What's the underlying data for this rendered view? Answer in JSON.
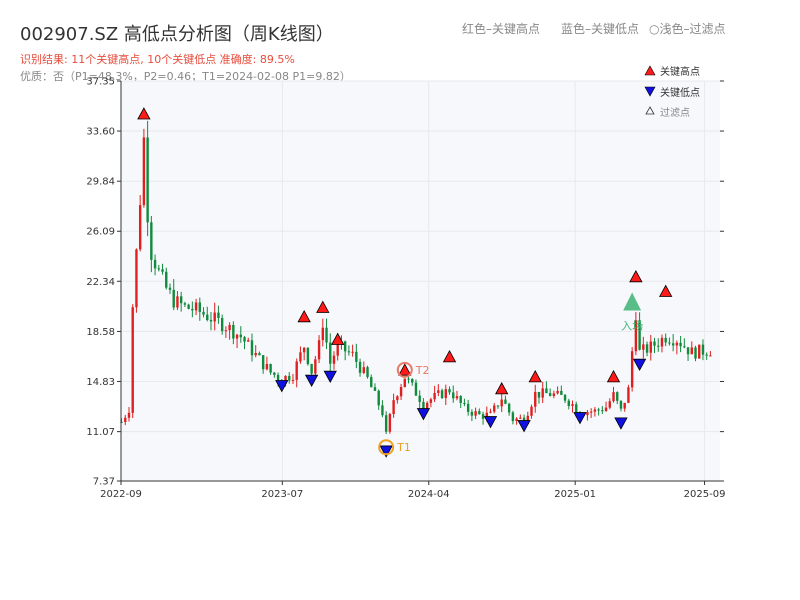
{
  "header": {
    "title": "002907.SZ 高低点分析图（周K线图）",
    "hint_red": "红色–关键高点",
    "hint_blue": "蓝色–关键低点",
    "hint_light": "○浅色–过滤点",
    "result_line": "识别结果: 11个关键高点, 10个关键低点  准确度: 89.5%",
    "quality_line": "优质：否（P1=48.3%，P2=0.46；T1=2024-02-08 P1=9.82）"
  },
  "legend": {
    "high": "关键高点",
    "low": "关键低点",
    "filtered": "过滤点"
  },
  "colors": {
    "up": "#e02020",
    "down": "#108a3c",
    "high_marker": "#ff1a1a",
    "low_marker": "#1010e0",
    "t1": "#f0a020",
    "t2": "#e87a6a",
    "entry": "#3cb371",
    "grid": "#e6e9ee",
    "plot_bg": "#f6f8fb"
  },
  "chart_data": {
    "type": "candlestick",
    "title": "002907.SZ 高低点分析图（周K线图）",
    "y_ticks": [
      "7.37",
      "11.07",
      "14.83",
      "18.58",
      "22.34",
      "26.09",
      "29.84",
      "33.60",
      "37.35"
    ],
    "ylim": [
      7.37,
      37.35
    ],
    "x_ticks": [
      "2022-09",
      "2023-07",
      "2024-04",
      "2025-01",
      "2025-09"
    ],
    "xlim": [
      "2022-09-01",
      "2025-09-30"
    ],
    "grid": true,
    "legend_position": "top-right",
    "series": [
      {
        "name": "关键高点",
        "points": [
          {
            "date": "2022-10-14",
            "value": 34.8
          },
          {
            "date": "2023-08-11",
            "value": 19.6
          },
          {
            "date": "2023-09-15",
            "value": 20.3
          },
          {
            "date": "2023-10-13",
            "value": 17.9
          },
          {
            "date": "2024-02-16",
            "value": 15.6
          },
          {
            "date": "2024-05-10",
            "value": 16.6
          },
          {
            "date": "2024-08-16",
            "value": 14.2
          },
          {
            "date": "2024-10-18",
            "value": 15.1
          },
          {
            "date": "2025-03-14",
            "value": 15.1
          },
          {
            "date": "2025-04-25",
            "value": 22.6
          },
          {
            "date": "2025-06-20",
            "value": 21.5
          }
        ]
      },
      {
        "name": "关键低点",
        "points": [
          {
            "date": "2023-06-30",
            "value": 14.6
          },
          {
            "date": "2023-08-25",
            "value": 15.0
          },
          {
            "date": "2023-09-29",
            "value": 15.3
          },
          {
            "date": "2024-01-12",
            "value": 9.7
          },
          {
            "date": "2024-03-22",
            "value": 12.5
          },
          {
            "date": "2024-07-26",
            "value": 11.9
          },
          {
            "date": "2024-09-27",
            "value": 11.6
          },
          {
            "date": "2025-01-10",
            "value": 12.2
          },
          {
            "date": "2025-03-28",
            "value": 11.8
          },
          {
            "date": "2025-05-02",
            "value": 16.2
          }
        ]
      }
    ],
    "labels": {
      "t1": "T1",
      "t2": "T2",
      "entry": "入场"
    },
    "t1_point": {
      "date": "2024-01-12",
      "value": 9.9
    },
    "t2_point": {
      "date": "2024-02-16",
      "value": 15.7
    },
    "entry_point": {
      "date": "2025-04-18",
      "value": 20.6
    },
    "candles_close_path": [
      [
        "2022-09-02",
        11.8
      ],
      [
        "2022-09-16",
        12.8
      ],
      [
        "2022-09-23",
        20.5
      ],
      [
        "2022-09-30",
        24.5
      ],
      [
        "2022-10-07",
        28.5
      ],
      [
        "2022-10-14",
        33.0
      ],
      [
        "2022-10-21",
        27.5
      ],
      [
        "2022-10-28",
        24.5
      ],
      [
        "2022-11-11",
        23.0
      ],
      [
        "2022-11-25",
        21.8
      ],
      [
        "2022-12-09",
        20.9
      ],
      [
        "2022-12-30",
        20.4
      ],
      [
        "2023-01-20",
        20.2
      ],
      [
        "2023-02-17",
        19.6
      ],
      [
        "2023-03-17",
        19.0
      ],
      [
        "2023-04-14",
        18.2
      ],
      [
        "2023-05-12",
        16.8
      ],
      [
        "2023-06-09",
        15.5
      ],
      [
        "2023-06-30",
        15.0
      ],
      [
        "2023-07-21",
        15.4
      ],
      [
        "2023-08-11",
        17.5
      ],
      [
        "2023-08-25",
        15.6
      ],
      [
        "2023-09-08",
        17.5
      ],
      [
        "2023-09-15",
        19.3
      ],
      [
        "2023-09-29",
        16.2
      ],
      [
        "2023-10-13",
        17.5
      ],
      [
        "2023-11-10",
        16.8
      ],
      [
        "2023-12-08",
        15.0
      ],
      [
        "2024-01-05",
        12.5
      ],
      [
        "2024-01-12",
        10.8
      ],
      [
        "2024-01-26",
        13.5
      ],
      [
        "2024-02-16",
        15.2
      ],
      [
        "2024-03-08",
        14.0
      ],
      [
        "2024-03-22",
        13.2
      ],
      [
        "2024-04-19",
        13.8
      ],
      [
        "2024-05-10",
        14.2
      ],
      [
        "2024-06-07",
        12.8
      ],
      [
        "2024-07-05",
        12.3
      ],
      [
        "2024-07-26",
        12.3
      ],
      [
        "2024-08-16",
        13.6
      ],
      [
        "2024-09-06",
        12.0
      ],
      [
        "2024-09-27",
        12.0
      ],
      [
        "2024-10-18",
        13.9
      ],
      [
        "2024-11-15",
        13.9
      ],
      [
        "2024-12-13",
        13.6
      ],
      [
        "2025-01-10",
        12.6
      ],
      [
        "2025-02-07",
        12.6
      ],
      [
        "2025-02-28",
        12.9
      ],
      [
        "2025-03-14",
        13.8
      ],
      [
        "2025-03-28",
        12.6
      ],
      [
        "2025-04-11",
        14.2
      ],
      [
        "2025-04-25",
        20.0
      ],
      [
        "2025-05-02",
        17.0
      ],
      [
        "2025-05-23",
        17.4
      ],
      [
        "2025-06-20",
        18.2
      ],
      [
        "2025-07-11",
        18.0
      ],
      [
        "2025-08-08",
        17.0
      ],
      [
        "2025-09-12",
        17.2
      ]
    ]
  }
}
